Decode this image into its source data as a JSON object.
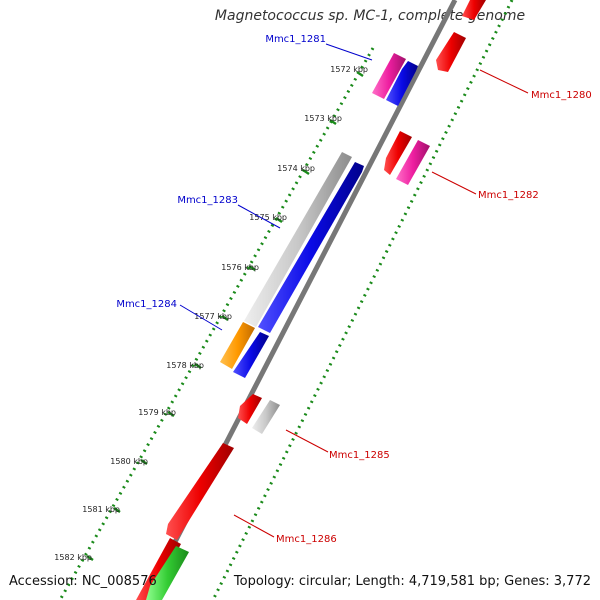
{
  "title": "Magnetococcus sp. MC-1, complete genome",
  "accession_label": "Accession: NC_008576",
  "summary_label": "Topology: circular; Length: 4,719,581 bp; Genes: 3,772",
  "colors": {
    "backbone": "#777777",
    "dotted_track": "#1a8a1a",
    "forward_label": "#0000cc",
    "reverse_label": "#cc0000",
    "blue": "#0a0ae6",
    "red": "#ee0000",
    "magenta": "#ee1ea0",
    "gray": "#c8c8c8",
    "orange": "#ff9900",
    "green": "#33cc33"
  },
  "scale_ticks": [
    "1572 kbp",
    "1573 kbp",
    "1574 kbp",
    "1575 kbp",
    "1576 kbp",
    "1577 kbp",
    "1578 kbp",
    "1579 kbp",
    "1580 kbp",
    "1581 kbp",
    "1582 kbp"
  ],
  "gene_labels": [
    {
      "id": "mmc1-1281",
      "text": "Mmc1_1281",
      "color": "#0000cc"
    },
    {
      "id": "mmc1-1280",
      "text": "Mmc1_1280",
      "color": "#cc0000"
    },
    {
      "id": "mmc1-1282",
      "text": "Mmc1_1282",
      "color": "#cc0000"
    },
    {
      "id": "mmc1-1283",
      "text": "Mmc1_1283",
      "color": "#0000cc"
    },
    {
      "id": "mmc1-1284",
      "text": "Mmc1_1284",
      "color": "#0000cc"
    },
    {
      "id": "mmc1-1285",
      "text": "Mmc1_1285",
      "color": "#cc0000"
    },
    {
      "id": "mmc1-1286",
      "text": "Mmc1_1286",
      "color": "#cc0000"
    }
  ]
}
